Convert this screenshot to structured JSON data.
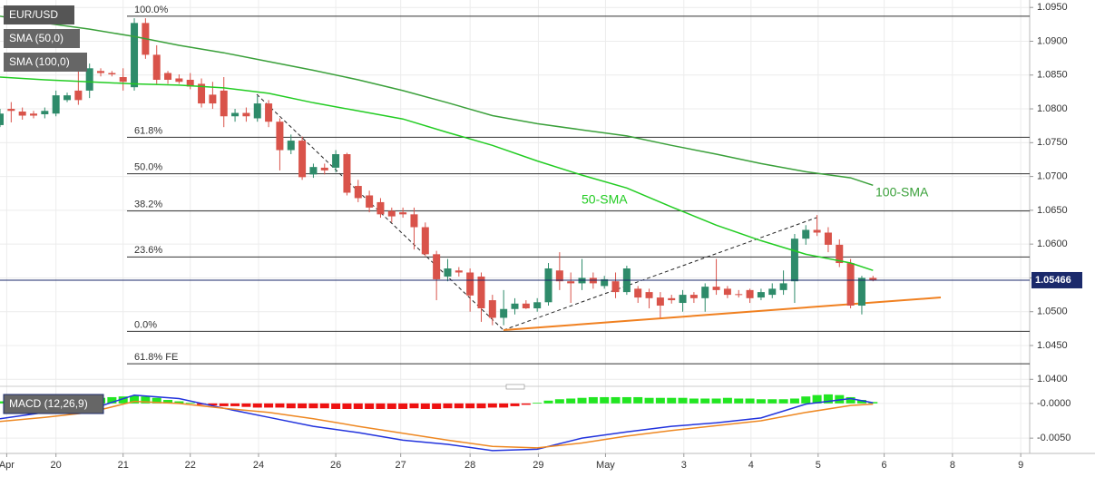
{
  "chart_data": [
    {
      "type": "candlestick",
      "title": "EUR/USD",
      "xlim": [
        0,
        92
      ],
      "ylim": [
        1.0391,
        1.0961
      ],
      "yticks": [
        {
          "value": 1.04,
          "label": "1.0400"
        },
        {
          "value": 1.045,
          "label": "1.0450"
        },
        {
          "value": 1.05,
          "label": "1.0500"
        },
        {
          "value": 1.055,
          "label": "1.0550"
        },
        {
          "value": 1.06,
          "label": "1.0600"
        },
        {
          "value": 1.065,
          "label": "1.0650"
        },
        {
          "value": 1.07,
          "label": "1.0700"
        },
        {
          "value": 1.075,
          "label": "1.0750"
        },
        {
          "value": 1.08,
          "label": "1.0800"
        },
        {
          "value": 1.085,
          "label": "1.0850"
        },
        {
          "value": 1.09,
          "label": "1.0900"
        },
        {
          "value": 1.095,
          "label": "1.0950"
        }
      ],
      "grid": true,
      "up_color": "#2e8b6a",
      "down_color": "#d9534a",
      "x": [
        0,
        1,
        2,
        3,
        4,
        5,
        6,
        7,
        8,
        9,
        10,
        11,
        12,
        13,
        14,
        15,
        16,
        17,
        18,
        19,
        20,
        21,
        22,
        23,
        24,
        25,
        26,
        27,
        28,
        29,
        30,
        31,
        32,
        33,
        34,
        35,
        36,
        37,
        38,
        39,
        40,
        41,
        42,
        43,
        44,
        45,
        46,
        47,
        48,
        49,
        50,
        51,
        52,
        53,
        54,
        55,
        56,
        57,
        58,
        59,
        60,
        61,
        62,
        63,
        64,
        65,
        66,
        67,
        68,
        69,
        70,
        71,
        72,
        73,
        74,
        75,
        76,
        77,
        78
      ],
      "open": [
        1.0776,
        1.08,
        1.0796,
        1.0793,
        1.0792,
        1.0793,
        1.0813,
        1.0827,
        1.0827,
        1.0856,
        1.0853,
        1.0847,
        1.0832,
        1.0927,
        1.088,
        1.0853,
        1.0845,
        1.0843,
        1.0837,
        1.0821,
        1.0827,
        1.0789,
        1.0794,
        1.0786,
        1.0808,
        1.0781,
        1.0739,
        1.0753,
        1.0703,
        1.0713,
        1.0713,
        1.0733,
        1.0686,
        1.0672,
        1.0662,
        1.0649,
        1.0647,
        1.0644,
        1.0625,
        1.0585,
        1.0552,
        1.0561,
        1.0558,
        1.0552,
        1.0517,
        1.0491,
        1.0504,
        1.0512,
        1.0505,
        1.0514,
        1.0561,
        1.0545,
        1.0542,
        1.055,
        1.0538,
        1.0545,
        1.0529,
        1.0534,
        1.0529,
        1.0521,
        1.052,
        1.0513,
        1.0525,
        1.052,
        1.0537,
        1.0534,
        1.0526,
        1.0532,
        1.0521,
        1.0525,
        1.0532,
        1.0545,
        1.0608,
        1.0621,
        1.0617,
        1.0599,
        1.0572,
        1.0509,
        1.055
      ],
      "high": [
        1.08,
        1.081,
        1.0802,
        1.0797,
        1.0802,
        1.0827,
        1.0824,
        1.0867,
        1.0867,
        1.086,
        1.0856,
        1.086,
        1.0934,
        1.0934,
        1.0894,
        1.0856,
        1.0851,
        1.0853,
        1.0845,
        1.084,
        1.0847,
        1.08,
        1.0802,
        1.0819,
        1.0813,
        1.0786,
        1.0762,
        1.0759,
        1.0719,
        1.0719,
        1.0739,
        1.0735,
        1.0695,
        1.0679,
        1.0668,
        1.0654,
        1.0654,
        1.0654,
        1.0632,
        1.059,
        1.0578,
        1.0566,
        1.0564,
        1.0558,
        1.0525,
        1.0532,
        1.052,
        1.0517,
        1.052,
        1.0572,
        1.0588,
        1.0558,
        1.0578,
        1.0558,
        1.0553,
        1.0558,
        1.0568,
        1.0538,
        1.0534,
        1.0529,
        1.0525,
        1.0532,
        1.0529,
        1.0542,
        1.0578,
        1.0538,
        1.0532,
        1.0534,
        1.0534,
        1.0542,
        1.0561,
        1.0615,
        1.0628,
        1.0643,
        1.0625,
        1.0607,
        1.0578,
        1.0553,
        1.0553
      ],
      "low": [
        1.0773,
        1.078,
        1.0784,
        1.0786,
        1.0786,
        1.0789,
        1.081,
        1.0806,
        1.0816,
        1.0848,
        1.0848,
        1.0827,
        1.0827,
        1.0874,
        1.0837,
        1.0837,
        1.0837,
        1.0829,
        1.0802,
        1.08,
        1.0773,
        1.0781,
        1.0781,
        1.0781,
        1.0773,
        1.0709,
        1.0733,
        1.0695,
        1.0698,
        1.0703,
        1.0706,
        1.0672,
        1.0662,
        1.0647,
        1.0639,
        1.0632,
        1.0639,
        1.0592,
        1.0582,
        1.0517,
        1.0545,
        1.0552,
        1.05,
        1.0485,
        1.048,
        1.048,
        1.0496,
        1.0504,
        1.05,
        1.0509,
        1.0532,
        1.0513,
        1.0532,
        1.0534,
        1.0534,
        1.052,
        1.0525,
        1.0513,
        1.0505,
        1.0491,
        1.0512,
        1.05,
        1.0513,
        1.05,
        1.0525,
        1.052,
        1.0521,
        1.0513,
        1.0517,
        1.052,
        1.0525,
        1.0513,
        1.0599,
        1.0612,
        1.0588,
        1.0566,
        1.0505,
        1.0496,
        1.0545
      ],
      "close": [
        1.0793,
        1.0797,
        1.079,
        1.079,
        1.0797,
        1.082,
        1.082,
        1.0813,
        1.086,
        1.0853,
        1.0851,
        1.084,
        1.0927,
        1.088,
        1.0843,
        1.0843,
        1.084,
        1.0833,
        1.0808,
        1.0808,
        1.0789,
        1.0794,
        1.0789,
        1.0808,
        1.0781,
        1.0739,
        1.0753,
        1.0699,
        1.0714,
        1.0709,
        1.0733,
        1.0676,
        1.0668,
        1.0654,
        1.0644,
        1.0641,
        1.0644,
        1.0625,
        1.0585,
        1.0548,
        1.0564,
        1.0558,
        1.0524,
        1.0505,
        1.0491,
        1.0504,
        1.0512,
        1.0505,
        1.0514,
        1.0564,
        1.0545,
        1.0542,
        1.055,
        1.0542,
        1.0548,
        1.0529,
        1.0564,
        1.0521,
        1.052,
        1.0509,
        1.0517,
        1.0525,
        1.052,
        1.0537,
        1.0532,
        1.0525,
        1.0525,
        1.052,
        1.0529,
        1.0534,
        1.0542,
        1.0608,
        1.0621,
        1.0617,
        1.0599,
        1.0572,
        1.0509,
        1.055,
        1.0547
      ],
      "series": [
        {
          "name": "SMA (50,0)",
          "label": "50-SMA",
          "color": "#22cc22",
          "x": [
            0,
            4,
            8,
            12,
            16,
            20,
            24,
            28,
            32,
            36,
            40,
            44,
            48,
            52,
            56,
            60,
            64,
            68,
            72,
            76,
            78
          ],
          "values": [
            1.0847,
            1.0843,
            1.084,
            1.0837,
            1.0835,
            1.0831,
            1.0823,
            1.0809,
            1.0797,
            1.0785,
            1.0765,
            1.0746,
            1.0723,
            1.0702,
            1.0683,
            1.0655,
            1.0628,
            1.0605,
            1.0585,
            1.0572,
            1.0561
          ]
        },
        {
          "name": "SMA (100,0)",
          "label": "100-SMA",
          "color": "#3aa03a",
          "x": [
            0,
            4,
            8,
            12,
            16,
            20,
            24,
            28,
            32,
            36,
            40,
            44,
            48,
            52,
            56,
            60,
            64,
            68,
            72,
            76,
            78
          ],
          "values": [
            1.0937,
            1.0927,
            1.0918,
            1.0907,
            1.0894,
            1.0883,
            1.087,
            1.0857,
            1.0843,
            1.0827,
            1.0809,
            1.079,
            1.0778,
            1.0769,
            1.076,
            1.0746,
            1.0733,
            1.0719,
            1.0707,
            1.0698,
            1.0687
          ]
        }
      ],
      "levels": [
        {
          "label": "100.0%",
          "value": 1.0937
        },
        {
          "label": "61.8%",
          "value": 1.0758
        },
        {
          "label": "50.0%",
          "value": 1.0704
        },
        {
          "label": "38.2%",
          "value": 1.0649
        },
        {
          "label": "23.6%",
          "value": 1.0581
        },
        {
          "label": "0.0%",
          "value": 1.0471
        },
        {
          "label": "61.8% FE",
          "value": 1.0423
        }
      ],
      "last_price": 1.05466,
      "last_price_color": "#1b2a6b"
    },
    {
      "type": "macd",
      "title": "MACD (12,26,9)",
      "xlim": [
        0,
        92
      ],
      "ylim": [
        -0.0072,
        0.0022
      ],
      "yticks": [
        {
          "value": 0,
          "label": "-0.0000"
        },
        {
          "value": -0.005,
          "label": "-0.0050"
        }
      ],
      "xticks": [
        {
          "value": 0.6,
          "label": "Apr"
        },
        {
          "value": 5,
          "label": "20"
        },
        {
          "value": 11,
          "label": "21"
        },
        {
          "value": 17,
          "label": "22"
        },
        {
          "value": 23.1,
          "label": "24"
        },
        {
          "value": 30,
          "label": "26"
        },
        {
          "value": 35.8,
          "label": "27"
        },
        {
          "value": 42,
          "label": "28"
        },
        {
          "value": 48.1,
          "label": "29"
        },
        {
          "value": 54.1,
          "label": "May"
        },
        {
          "value": 61.1,
          "label": "3"
        },
        {
          "value": 67.1,
          "label": "4"
        },
        {
          "value": 73.1,
          "label": "5"
        },
        {
          "value": 79,
          "label": "6"
        },
        {
          "value": 85.1,
          "label": "8"
        },
        {
          "value": 91.2,
          "label": "9"
        }
      ],
      "grid": true,
      "histogram": {
        "up_color": "#22e622",
        "down_color": "#ee1111",
        "values": [
          0.0003,
          0.0003,
          0.0004,
          0.0004,
          0.0005,
          0.0006,
          0.0006,
          0.0007,
          0.0007,
          0.0008,
          0.0009,
          0.001,
          0.0011,
          0.001,
          0.0008,
          0.0005,
          0.0003,
          0.0001,
          -0.0002,
          -0.0003,
          -0.0004,
          -0.0004,
          -0.0005,
          -0.0006,
          -0.0006,
          -0.0006,
          -0.0007,
          -0.0007,
          -0.0007,
          -0.0007,
          -0.0008,
          -0.0008,
          -0.0008,
          -0.0008,
          -0.0008,
          -0.0008,
          -0.0008,
          -0.0007,
          -0.0008,
          -0.0008,
          -0.0007,
          -0.0007,
          -0.0007,
          -0.0007,
          -0.0006,
          -0.0006,
          -0.0004,
          -0.0002,
          0.0001,
          0.0004,
          0.0006,
          0.0007,
          0.0008,
          0.0009,
          0.0009,
          0.0009,
          0.0009,
          0.0009,
          0.0008,
          0.0008,
          0.0008,
          0.0008,
          0.0007,
          0.0007,
          0.0007,
          0.0008,
          0.0007,
          0.0007,
          0.0006,
          0.0006,
          0.0006,
          0.0007,
          0.001,
          0.0012,
          0.0013,
          0.0012,
          0.0009,
          0.0005,
          0.0002
        ]
      },
      "series": [
        {
          "color": "#2233dd",
          "x": [
            0,
            4,
            8,
            12,
            16,
            20,
            24,
            28,
            32,
            36,
            40,
            44,
            48,
            52,
            56,
            60,
            64,
            68,
            72,
            76,
            78
          ],
          "values": [
            -0.0022,
            -0.0013,
            -0.0009,
            0.0012,
            0.0007,
            -0.0007,
            -0.002,
            -0.0033,
            -0.0042,
            -0.0053,
            -0.0059,
            -0.0068,
            -0.0066,
            -0.005,
            -0.0041,
            -0.0033,
            -0.0028,
            -0.0021,
            -0.0001,
            0.0007,
            0.0001
          ]
        },
        {
          "color": "#ee8822",
          "x": [
            0,
            4,
            8,
            12,
            16,
            20,
            24,
            28,
            32,
            36,
            40,
            44,
            48,
            52,
            56,
            60,
            64,
            68,
            72,
            76,
            78
          ],
          "values": [
            -0.0026,
            -0.002,
            -0.0013,
            0.0003,
            0.0,
            -0.0007,
            -0.0013,
            -0.0022,
            -0.0033,
            -0.0043,
            -0.0053,
            -0.0062,
            -0.0064,
            -0.0057,
            -0.0047,
            -0.0039,
            -0.0032,
            -0.0025,
            -0.0013,
            -0.0003,
            -0.0001
          ]
        }
      ]
    }
  ]
}
